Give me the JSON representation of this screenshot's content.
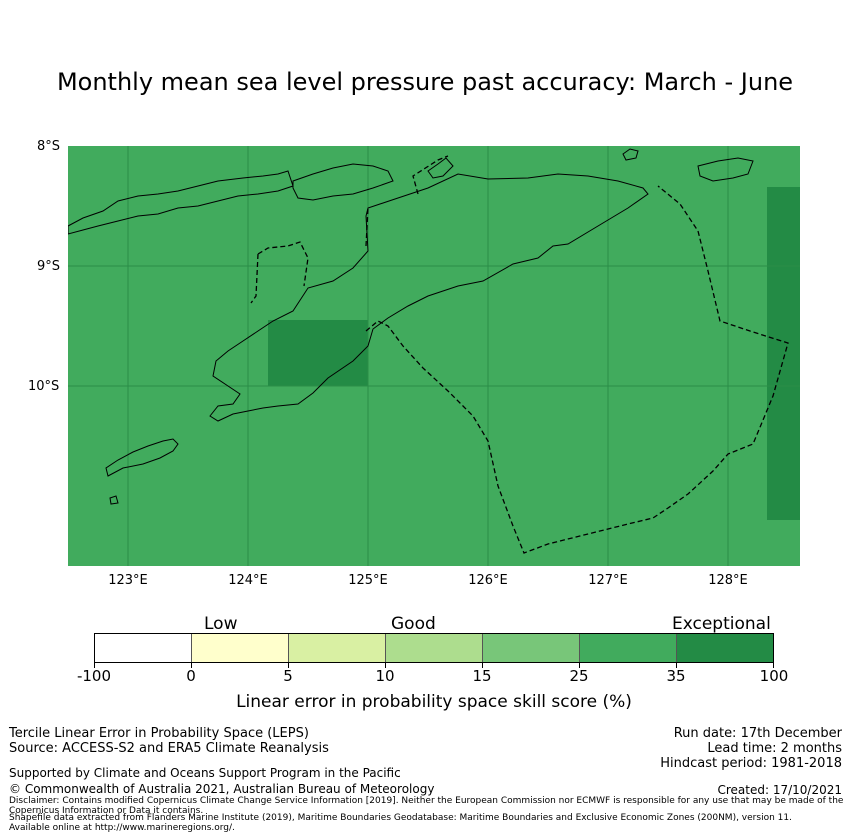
{
  "title": "Monthly mean sea level pressure past accuracy: March - June",
  "map": {
    "lat_labels": [
      "8°S",
      "9°S",
      "10°S"
    ],
    "lon_labels": [
      "123°E",
      "124°E",
      "125°E",
      "126°E",
      "127°E",
      "128°E"
    ],
    "colors": {
      "ocean": "#41ab5d",
      "exceptional": "#238b45",
      "gridline": "#2b8c48",
      "coast": "#000000"
    }
  },
  "legend": {
    "categories": [
      "Low",
      "Good",
      "Exceptional"
    ],
    "ticks": [
      "-100",
      "0",
      "5",
      "10",
      "15",
      "25",
      "35",
      "100"
    ],
    "colors": [
      "#ffffff",
      "#ffffcc",
      "#d9f0a3",
      "#addd8e",
      "#78c679",
      "#41ab5d",
      "#238b45"
    ],
    "label": "Linear error in probability space skill score (%)"
  },
  "footer": {
    "method": "Tercile Linear Error in Probability Space (LEPS)",
    "source": "Source: ACCESS-S2 and ERA5 Climate Reanalysis",
    "support": "Supported by Climate and Oceans Support Program in the Pacific",
    "copyright": "© Commonwealth of Australia 2021, Australian Bureau of Meteorology",
    "run_date": "Run date: 17th December",
    "lead_time": "Lead time: 2 months",
    "hindcast": "Hindcast period: 1981-2018",
    "created": "Created: 17/10/2021",
    "disclaimer": "Disclaimer: Contains modified Copernicus Climate Change Service Information [2019]. Neither the European Commission nor ECMWF is responsible for any use that may be made of the Copernicus Information or Data it contains.",
    "shapefile": "Shapefile data extracted from Flanders Marine Institute (2019), Maritime Boundaries Geodatabase: Maritime Boundaries and Exclusive Economic Zones (200NM), version 11. Available online at http://www.marineregions.org/."
  }
}
